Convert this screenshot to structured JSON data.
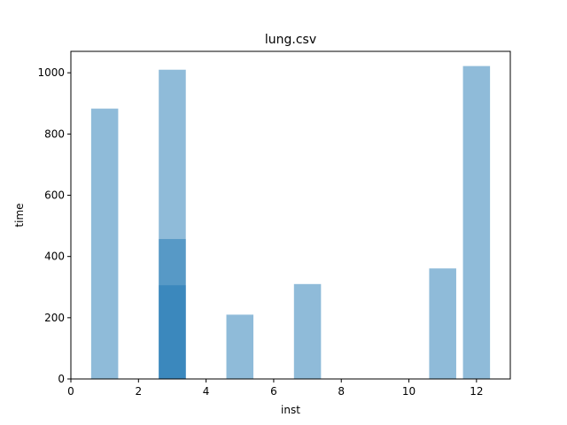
{
  "chart_data": {
    "type": "bar",
    "title": "lung.csv",
    "xlabel": "inst",
    "ylabel": "time",
    "xlim": [
      0,
      13
    ],
    "ylim": [
      0,
      1070
    ],
    "xticks": [
      0,
      2,
      4,
      6,
      8,
      10,
      12
    ],
    "yticks": [
      0,
      200,
      400,
      600,
      800,
      1000
    ],
    "bar_width": 0.8,
    "bar_color": "#1f77b4",
    "bar_opacity": 0.5,
    "bars": [
      {
        "x": 1,
        "value": 883
      },
      {
        "x": 3,
        "value": 1010
      },
      {
        "x": 3,
        "value": 457
      },
      {
        "x": 3,
        "value": 306
      },
      {
        "x": 5,
        "value": 210
      },
      {
        "x": 7,
        "value": 310
      },
      {
        "x": 11,
        "value": 361
      },
      {
        "x": 12,
        "value": 1022
      }
    ],
    "grid": false,
    "legend": "none"
  }
}
